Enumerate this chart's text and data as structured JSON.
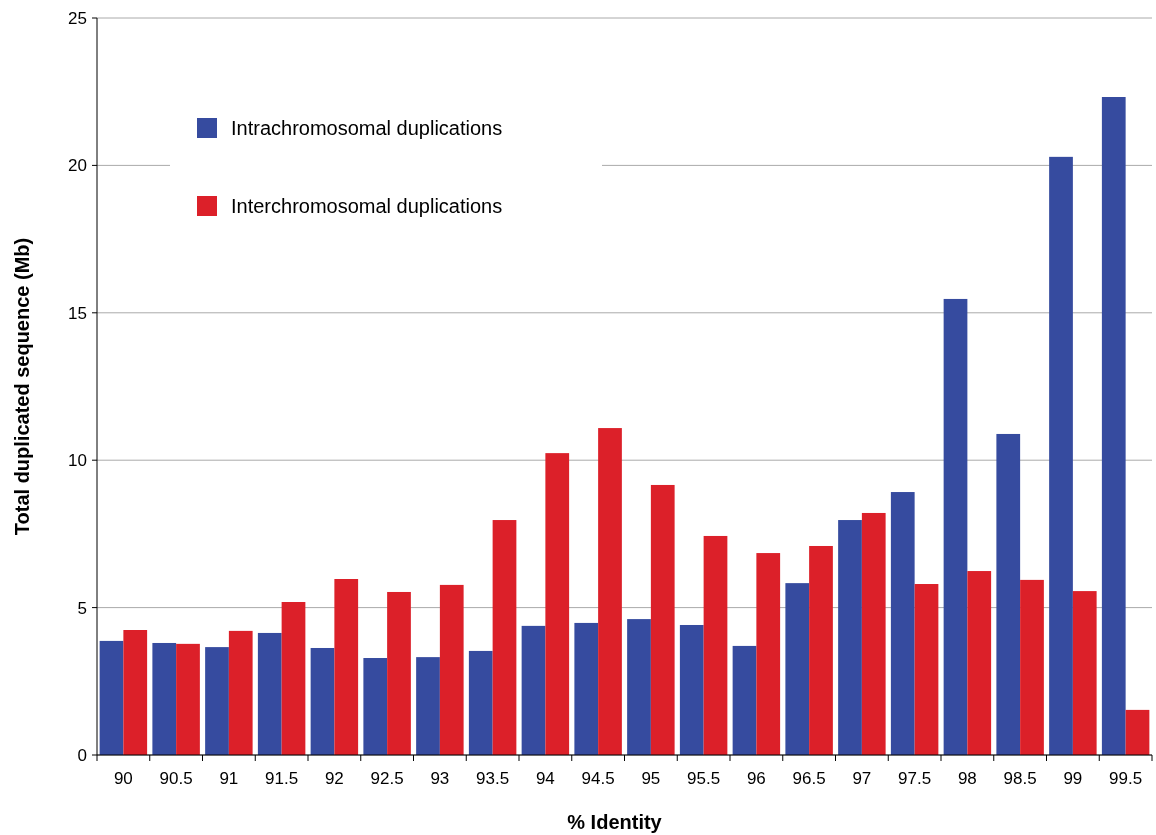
{
  "chart_data": {
    "type": "bar",
    "xlabel": "% Identity",
    "ylabel": "Total duplicated sequence (Mb)",
    "categories": [
      "90",
      "90.5",
      "91",
      "91.5",
      "92",
      "92.5",
      "93",
      "93.5",
      "94",
      "94.5",
      "95",
      "95.5",
      "96",
      "96.5",
      "97",
      "97.5",
      "98",
      "98.5",
      "99",
      "99.5"
    ],
    "series": [
      {
        "name": "Intrachromosomal duplications",
        "color": "#364b9f",
        "values": [
          3.87,
          3.8,
          3.66,
          4.14,
          3.63,
          3.29,
          3.32,
          3.53,
          4.38,
          4.48,
          4.61,
          4.41,
          3.7,
          5.83,
          7.97,
          8.92,
          15.47,
          10.89,
          20.29,
          22.32
        ]
      },
      {
        "name": "Interchromosomal duplications",
        "color": "#dc2029",
        "values": [
          4.24,
          3.77,
          4.21,
          5.19,
          5.97,
          5.53,
          5.77,
          7.97,
          10.24,
          11.09,
          9.16,
          7.43,
          6.85,
          7.09,
          8.21,
          5.8,
          6.24,
          5.94,
          5.56,
          1.53
        ]
      }
    ],
    "ylim": [
      0,
      25
    ],
    "yticks": [
      0,
      5,
      10,
      15,
      20,
      25
    ],
    "grid": "y",
    "legend": "top left"
  }
}
